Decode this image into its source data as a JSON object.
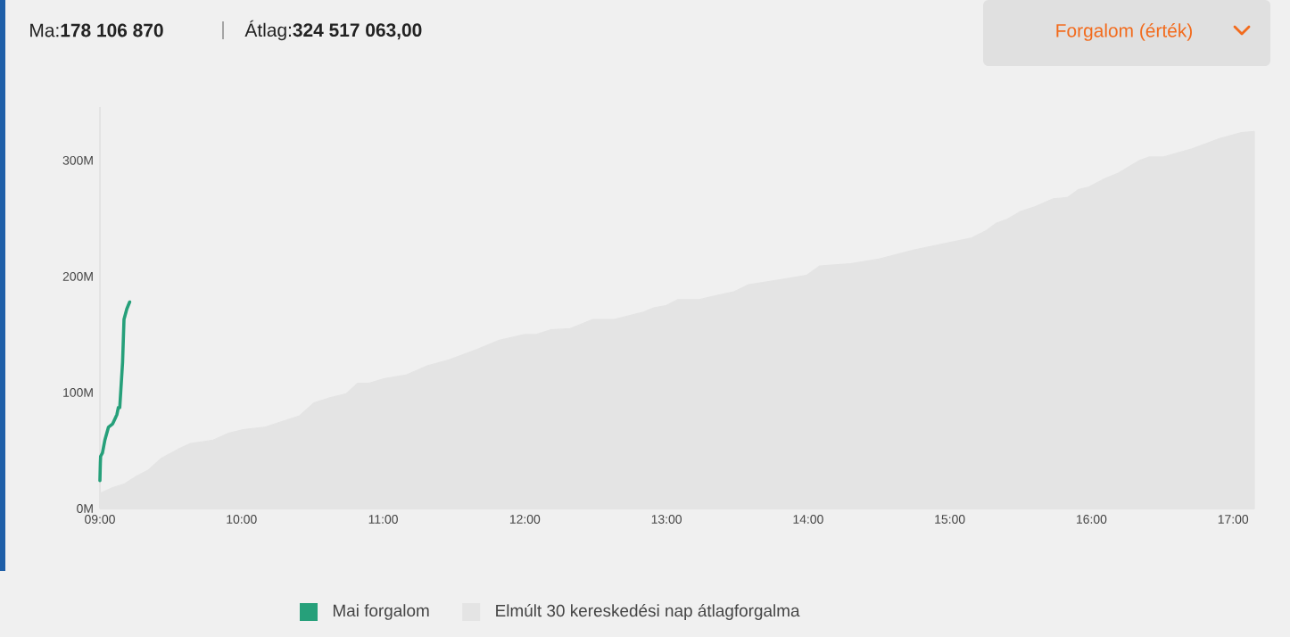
{
  "chart_data": {
    "type": "line",
    "annotations": [
      "Ma:**178 106 870**",
      "Átlag:**324 517 063,00**",
      "Forgalom (érték)"
    ],
    "xlim": [
      9,
      17.15
    ],
    "ylim": [
      0,
      346
    ],
    "xticks": [
      {
        "value": 9,
        "label": "09:00"
      },
      {
        "value": 10,
        "label": "10:00"
      },
      {
        "value": 11,
        "label": "11:00"
      },
      {
        "value": 12,
        "label": "12:00"
      },
      {
        "value": 13,
        "label": "13:00"
      },
      {
        "value": 14,
        "label": "14:00"
      },
      {
        "value": 15,
        "label": "15:00"
      },
      {
        "value": 16,
        "label": "16:00"
      },
      {
        "value": 17,
        "label": "17:00"
      }
    ],
    "yticks": [
      {
        "value": 0,
        "label": "0M"
      },
      {
        "value": 100,
        "label": "100M"
      },
      {
        "value": 200,
        "label": "200M"
      },
      {
        "value": 300,
        "label": "300M"
      }
    ],
    "legend": "bottom",
    "series": [
      {
        "name": "Mai forgalom",
        "color": "#26a07a",
        "x": [
          9.0,
          9.003,
          9.005,
          9.018,
          9.035,
          9.06,
          9.09,
          9.12,
          9.13,
          9.14,
          9.16,
          9.17,
          9.19,
          9.21
        ],
        "values": [
          24,
          39,
          45,
          48,
          59,
          70,
          73,
          81,
          87,
          87,
          126,
          163,
          172,
          178
        ]
      },
      {
        "name": "Elmúlt 30 kereskedési nap átlagforgalma",
        "type": "area",
        "color": "#e4e4e4",
        "x": [
          9.0,
          9.09,
          9.17,
          9.26,
          9.34,
          9.43,
          9.55,
          9.64,
          9.8,
          9.91,
          10.01,
          10.16,
          10.41,
          10.51,
          10.61,
          10.74,
          10.82,
          10.9,
          11.01,
          11.16,
          11.31,
          11.46,
          11.66,
          11.82,
          12.0,
          12.08,
          12.18,
          12.32,
          12.48,
          12.63,
          12.83,
          12.91,
          13.0,
          13.08,
          13.23,
          13.33,
          13.48,
          13.58,
          13.69,
          13.79,
          13.99,
          14.08,
          14.3,
          14.5,
          14.75,
          14.99,
          15.15,
          15.25,
          15.33,
          15.4,
          15.5,
          15.6,
          15.73,
          15.83,
          15.91,
          15.98,
          16.09,
          16.19,
          16.34,
          16.41,
          16.51,
          16.71,
          16.91,
          17.06,
          17.15
        ],
        "values": [
          13,
          18,
          21,
          28,
          33,
          43,
          51,
          56,
          59,
          65,
          68,
          70,
          80,
          91,
          95,
          99,
          108,
          108,
          112,
          115,
          123,
          128,
          137,
          145,
          150,
          150,
          154,
          155,
          163,
          163,
          169,
          173,
          175,
          180,
          180,
          183,
          187,
          193,
          195,
          197,
          201,
          209,
          211,
          215,
          223,
          229,
          233,
          239,
          246,
          249,
          256,
          260,
          267,
          268,
          275,
          277,
          284,
          289,
          300,
          303,
          303,
          310,
          319,
          324,
          325
        ]
      }
    ]
  }
}
